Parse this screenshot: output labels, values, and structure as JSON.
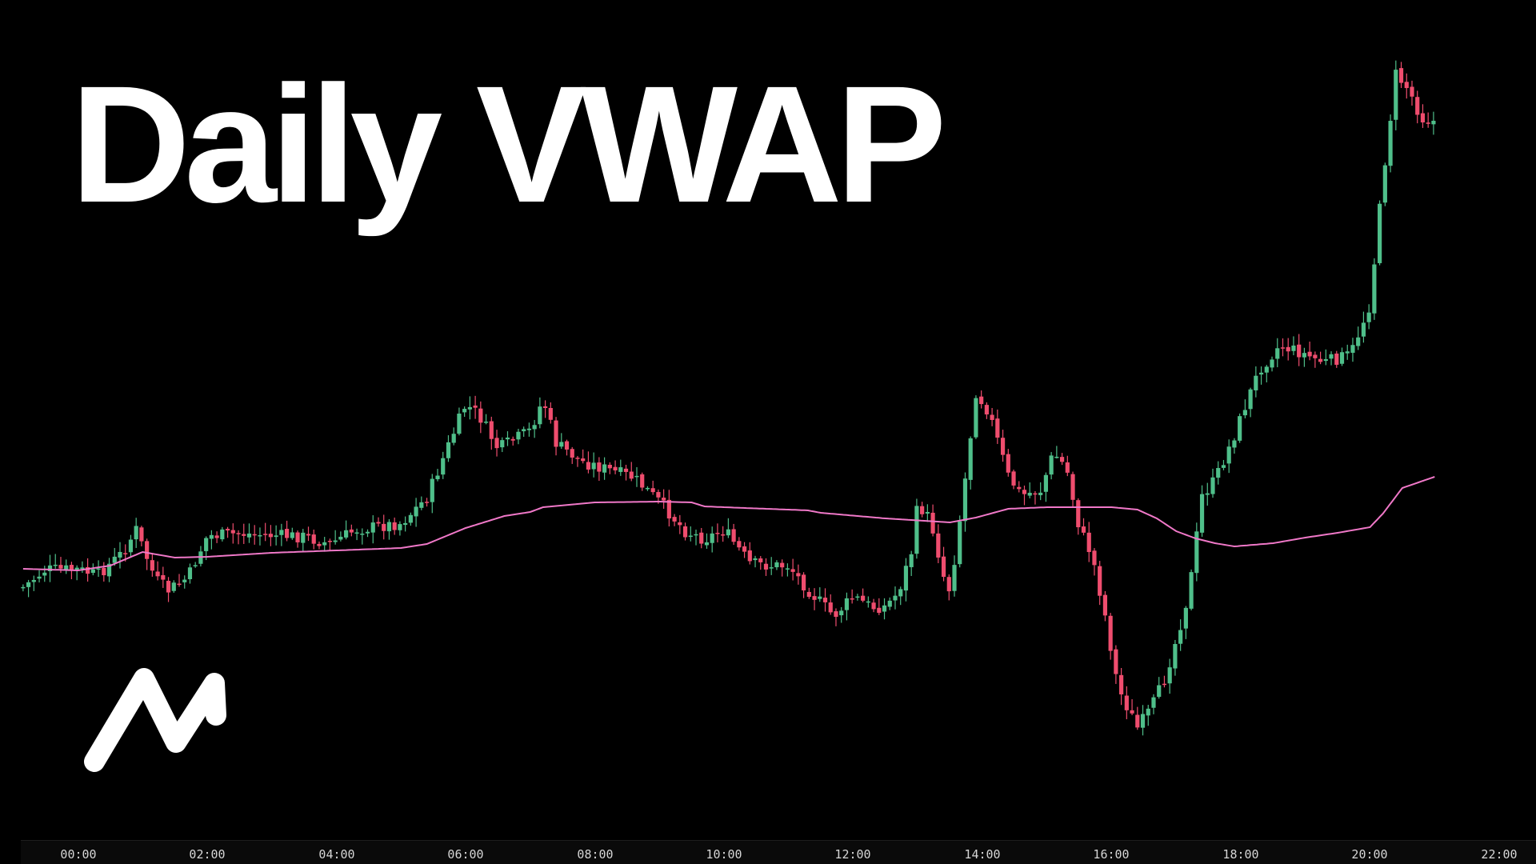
{
  "title": "Daily VWAP",
  "brand": {
    "logo_icon": "stylized-n-zigzag-logo",
    "logo_color": "#ffffff"
  },
  "colors": {
    "background": "#000000",
    "up_candle": "#4fbf8a",
    "down_candle": "#ef4d6e",
    "vwap_line": "#f078c8",
    "text": "#ffffff",
    "axis_text": "#d6d6d6"
  },
  "chart_data": {
    "type": "candlestick",
    "title": "",
    "xlabel": "",
    "ylabel": "",
    "x_ticks": [
      "00:00",
      "02:00",
      "04:00",
      "06:00",
      "08:00",
      "10:00",
      "12:00",
      "14:00",
      "16:00",
      "18:00",
      "20:00",
      "22:00"
    ],
    "x_range_hours": [
      -0.9,
      23.8
    ],
    "y_axis_visible": false,
    "grid": false,
    "legend": "none",
    "candle_interval_minutes": 5,
    "anchor_closes": [
      [
        -0.85,
        734
      ],
      [
        -0.5,
        712
      ],
      [
        0.0,
        712
      ],
      [
        0.3,
        719
      ],
      [
        0.7,
        690
      ],
      [
        0.9,
        662
      ],
      [
        1.0,
        684
      ],
      [
        1.2,
        724
      ],
      [
        1.4,
        738
      ],
      [
        1.7,
        722
      ],
      [
        2.0,
        670
      ],
      [
        2.5,
        667
      ],
      [
        3.0,
        669
      ],
      [
        3.5,
        671
      ],
      [
        3.9,
        680
      ],
      [
        4.3,
        662
      ],
      [
        5.0,
        654
      ],
      [
        5.4,
        622
      ],
      [
        5.8,
        544
      ],
      [
        6.0,
        506
      ],
      [
        6.2,
        518
      ],
      [
        6.5,
        561
      ],
      [
        7.0,
        538
      ],
      [
        7.2,
        499
      ],
      [
        7.4,
        554
      ],
      [
        7.8,
        577
      ],
      [
        8.2,
        587
      ],
      [
        8.6,
        597
      ],
      [
        9.0,
        627
      ],
      [
        9.4,
        664
      ],
      [
        9.7,
        674
      ],
      [
        10.0,
        662
      ],
      [
        10.4,
        704
      ],
      [
        10.7,
        707
      ],
      [
        11.0,
        707
      ],
      [
        11.3,
        737
      ],
      [
        11.7,
        770
      ],
      [
        12.0,
        746
      ],
      [
        12.3,
        759
      ],
      [
        12.5,
        758
      ],
      [
        12.7,
        740
      ],
      [
        12.9,
        690
      ],
      [
        13.0,
        630
      ],
      [
        13.2,
        651
      ],
      [
        13.4,
        720
      ],
      [
        13.5,
        739
      ],
      [
        13.7,
        620
      ],
      [
        13.9,
        490
      ],
      [
        14.1,
        515
      ],
      [
        14.4,
        595
      ],
      [
        14.6,
        619
      ],
      [
        14.9,
        613
      ],
      [
        15.1,
        566
      ],
      [
        15.3,
        585
      ],
      [
        15.5,
        660
      ],
      [
        15.7,
        695
      ],
      [
        15.9,
        770
      ],
      [
        16.1,
        860
      ],
      [
        16.4,
        910
      ],
      [
        16.6,
        887
      ],
      [
        16.8,
        853
      ],
      [
        17.0,
        800
      ],
      [
        17.2,
        739
      ],
      [
        17.4,
        620
      ],
      [
        17.6,
        600
      ],
      [
        17.9,
        544
      ],
      [
        18.1,
        500
      ],
      [
        18.3,
        460
      ],
      [
        18.6,
        432
      ],
      [
        18.9,
        440
      ],
      [
        19.3,
        453
      ],
      [
        19.7,
        443
      ],
      [
        20.0,
        380
      ],
      [
        20.2,
        222
      ],
      [
        20.4,
        93
      ],
      [
        20.6,
        112
      ],
      [
        20.8,
        148
      ],
      [
        21.0,
        152
      ]
    ],
    "vwap": [
      [
        -0.85,
        711
      ],
      [
        0.0,
        713
      ],
      [
        0.5,
        707
      ],
      [
        1.0,
        690
      ],
      [
        1.5,
        697
      ],
      [
        2.0,
        696
      ],
      [
        3.0,
        691
      ],
      [
        4.0,
        688
      ],
      [
        5.0,
        685
      ],
      [
        5.4,
        680
      ],
      [
        6.0,
        660
      ],
      [
        6.6,
        645
      ],
      [
        7.0,
        640
      ],
      [
        7.2,
        634
      ],
      [
        8.0,
        628
      ],
      [
        9.0,
        627
      ],
      [
        9.5,
        628
      ],
      [
        9.7,
        633
      ],
      [
        10.0,
        634
      ],
      [
        11.0,
        637
      ],
      [
        11.3,
        638
      ],
      [
        11.5,
        641
      ],
      [
        12.5,
        648
      ],
      [
        13.5,
        653
      ],
      [
        13.9,
        647
      ],
      [
        14.4,
        636
      ],
      [
        15.0,
        634
      ],
      [
        16.0,
        634
      ],
      [
        16.4,
        637
      ],
      [
        16.7,
        648
      ],
      [
        17.0,
        664
      ],
      [
        17.3,
        673
      ],
      [
        17.6,
        679
      ],
      [
        17.9,
        683
      ],
      [
        18.5,
        679
      ],
      [
        19.0,
        672
      ],
      [
        19.5,
        666
      ],
      [
        20.0,
        659
      ],
      [
        20.2,
        642
      ],
      [
        20.5,
        610
      ],
      [
        21.0,
        596
      ]
    ]
  },
  "time_axis": {
    "labels": [
      "00:00",
      "02:00",
      "04:00",
      "06:00",
      "08:00",
      "10:00",
      "12:00",
      "14:00",
      "16:00",
      "18:00",
      "20:00",
      "22:00"
    ]
  }
}
